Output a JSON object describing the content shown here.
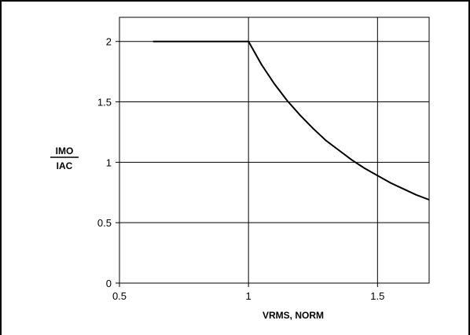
{
  "chart_data": {
    "type": "line",
    "title": "",
    "xlabel": "VRMS, NORM",
    "ylabel_numerator": "IMO",
    "ylabel_denominator": "IAC",
    "xlim": [
      0.5,
      1.7
    ],
    "ylim": [
      0,
      2.2
    ],
    "grid": true,
    "x_ticks": [
      {
        "value": 0.5,
        "label": "0.5"
      },
      {
        "value": 1,
        "label": "1"
      },
      {
        "value": 1.5,
        "label": "1.5"
      }
    ],
    "y_ticks": [
      {
        "value": 0,
        "label": "0"
      },
      {
        "value": 0.5,
        "label": "0.5"
      },
      {
        "value": 1,
        "label": "1"
      },
      {
        "value": 1.5,
        "label": "1.5"
      },
      {
        "value": 2,
        "label": "2"
      }
    ],
    "series": [
      {
        "color": "#000000",
        "x": [
          0.63,
          1.0,
          1.05,
          1.1,
          1.15,
          1.2,
          1.25,
          1.3,
          1.35,
          1.4,
          1.45,
          1.5,
          1.55,
          1.6,
          1.65,
          1.7
        ],
        "y": [
          2.0,
          2.0,
          1.81,
          1.65,
          1.51,
          1.39,
          1.28,
          1.18,
          1.1,
          1.02,
          0.95,
          0.89,
          0.83,
          0.78,
          0.73,
          0.69
        ]
      }
    ]
  }
}
